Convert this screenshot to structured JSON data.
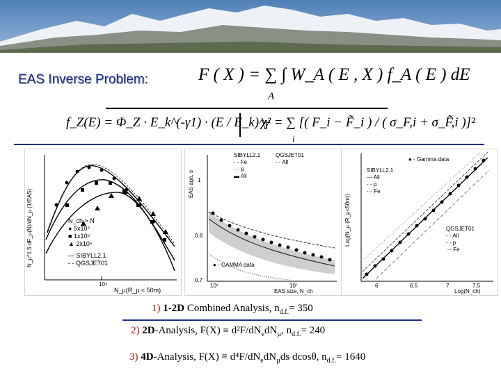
{
  "slide": {
    "title": "EAS Inverse Problem:",
    "formula_main": "F ( X ) = ∑ ∫ W_A ( E , X ) f_A ( E ) dE",
    "formula_sum_index": "A",
    "formula_spectrum": "f_Z(E) = Φ_Z · E_k^(-γ1) · (E / E_k)^γ",
    "formula_chi2": "χ² = ∑ [( F_i − F̃_i ) / ( σ_F,i + σ_F̃,i )]²",
    "formula_chi2_index": "i"
  },
  "panels": [
    {
      "ylabel": "N_µ^1.5 dF_µ(N)/dN_µ (1/EAS)",
      "xlabel": "N_µ(R_µ < 50m)",
      "x_tick": "10⁴",
      "legend_title": "N_ch > N",
      "legend": [
        "5x10⁵",
        "1x10⁶",
        "2x10⁶"
      ],
      "model_lines": [
        "SIBYLL2.1",
        "QGSJET01"
      ]
    },
    {
      "ylabel": "EAS age, s",
      "xlabel": "EAS size, N_ch",
      "y_ticks": [
        "1",
        "0.8",
        "0.7"
      ],
      "x_ticks": [
        "10⁶",
        "10⁷"
      ],
      "legend_left": [
        "SIBYLL2.1",
        "Fe",
        "p",
        "All"
      ],
      "legend_right": [
        "QGSJET01",
        "All"
      ],
      "data_label": "GAMMA data"
    },
    {
      "ylabel": "Log(N_µ (R_µ<50m))",
      "xlabel": "Log(N_ch)",
      "x_ticks": [
        "6",
        "6.5",
        "7",
        "7.5"
      ],
      "data_label": "Gamma data",
      "legend_top_title": "SIBYLL2.1",
      "legend_top": [
        "All",
        "p",
        "Fe"
      ],
      "legend_bottom_title": "QGSJET01",
      "legend_bottom": [
        "All",
        "p",
        "Fe"
      ]
    }
  ],
  "captions": [
    {
      "num": "1)",
      "name": "1-2D",
      "text": " Combined Analysis,  n",
      "sub": "d.f.",
      "tail": "= 350"
    },
    {
      "num": "2)",
      "name": "2D",
      "text": "-Analysis, F(X) ≡ d²F/dN",
      "tail2": "dN",
      "extra": ",  n",
      "sub": "d.f.",
      "tail": "= 240"
    },
    {
      "num": "3)",
      "name": "4D",
      "text": "-Analysis, F(X) ≡ d⁴F/dN",
      "tail2": "dN",
      "extra": "ds dcosθ,  n",
      "sub": "d.f.",
      "tail": "= 1640"
    }
  ]
}
